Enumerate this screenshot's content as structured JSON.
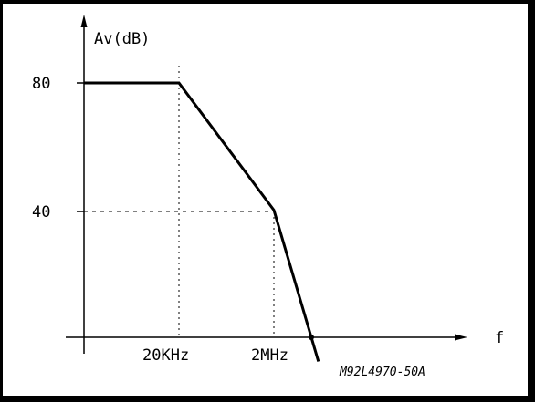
{
  "chart_data": {
    "type": "line",
    "title": "",
    "ylabel": "Av(dB)",
    "xlabel": "f",
    "y_ticks": [
      "80",
      "40"
    ],
    "x_ticks": [
      "20KHz",
      "2MHz"
    ],
    "series": [
      {
        "x": [
          "",
          "20KHz",
          "2MHz",
          ""
        ],
        "y": [
          80,
          80,
          40,
          0
        ]
      }
    ],
    "ylim": [
      0,
      80
    ],
    "grid": false,
    "reference_lines": "dotted guides from 80 at 20KHz and 40 at 2MHz",
    "figure_code": "M92L4970-50A"
  }
}
